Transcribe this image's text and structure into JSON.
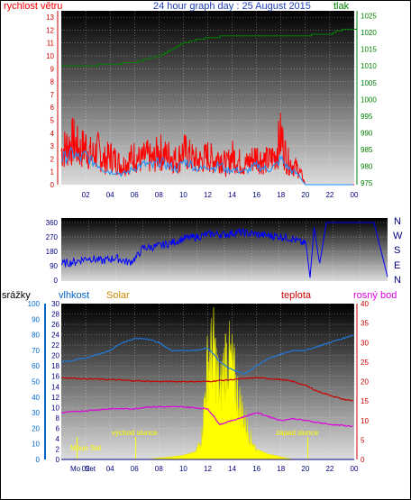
{
  "header": {
    "wind_label": "rychlost větru",
    "title": "24 hour graph day : 25 August 2015",
    "pressure_label": "tlak"
  },
  "middle": {
    "compass": [
      "N",
      "W",
      "S",
      "E",
      "N"
    ]
  },
  "bottom": {
    "rain_label": "srážky",
    "humidity_label": "vlhkost",
    "solar_label": "Solar",
    "temp_label": "teplota",
    "dew_label": "rosný bod",
    "sunrise": "východ slunce",
    "sunset": "západ slunce",
    "moonset": "Moon Set",
    "moonset_tick": "Mo",
    "moon_tick2": "Set"
  },
  "colors": {
    "wind": "#ff0000",
    "wind_avg": "#1e90ff",
    "pressure": "#008000",
    "direction": "#0000ff",
    "humidity": "#1e78dc",
    "temp": "#cc0000",
    "dew": "#dd00dd",
    "solar": "#ffff00",
    "rain_axis": "#0066cc",
    "temp_axis": "#cc0000",
    "solar_axis": "#cc8800"
  },
  "chart_data": [
    {
      "type": "line",
      "name": "wind",
      "xlabel": "",
      "x_ticks": [
        "02",
        "04",
        "06",
        "08",
        "10",
        "12",
        "14",
        "16",
        "18",
        "20",
        "22",
        "00"
      ],
      "y_left_ticks": [
        0,
        1,
        2,
        3,
        4,
        5,
        6,
        7,
        8,
        9,
        10,
        11,
        12,
        13
      ],
      "y_right_ticks": [
        975,
        980,
        985,
        990,
        995,
        1000,
        1005,
        1010,
        1015,
        1020,
        1025
      ],
      "ylim_left": [
        0,
        13.5
      ],
      "ylim_right": [
        974.5,
        1026.5
      ],
      "series": [
        {
          "name": "wind_gust",
          "axis": "left",
          "x": [
            0,
            0.5,
            1,
            1.5,
            2,
            2.5,
            3,
            3.5,
            4,
            4.5,
            5,
            5.5,
            6,
            6.5,
            7,
            7.5,
            8,
            8.5,
            9,
            9.5,
            10,
            10.5,
            11,
            11.5,
            12,
            12.5,
            13,
            13.5,
            14,
            14.5,
            15,
            15.5,
            16,
            16.5,
            17,
            17.5,
            18,
            18.5,
            19,
            19.5,
            20,
            21,
            22,
            23,
            24
          ],
          "y": [
            3.5,
            4,
            4.5,
            3.5,
            4,
            3,
            3.5,
            2.5,
            3,
            2.5,
            2,
            2.5,
            3,
            2.5,
            3,
            2.5,
            3.5,
            3,
            3,
            2.5,
            3.5,
            3,
            2.5,
            2.5,
            3,
            2.5,
            3,
            2,
            3,
            2.5,
            2,
            2.5,
            3,
            2.5,
            2.5,
            3,
            5,
            2.5,
            2,
            1.5,
            0,
            0,
            0,
            0,
            0
          ]
        },
        {
          "name": "wind_avg",
          "axis": "left",
          "x": [
            0,
            0.5,
            1,
            1.5,
            2,
            2.5,
            3,
            3.5,
            4,
            4.5,
            5,
            5.5,
            6,
            6.5,
            7,
            7.5,
            8,
            8.5,
            9,
            9.5,
            10,
            10.5,
            11,
            11.5,
            12,
            12.5,
            13,
            13.5,
            14,
            14.5,
            15,
            15.5,
            16,
            16.5,
            17,
            17.5,
            18,
            18.5,
            19,
            19.5,
            20,
            21,
            22,
            23,
            24
          ],
          "y": [
            2,
            2.2,
            2.4,
            2,
            2.3,
            1.8,
            1.6,
            1.2,
            1,
            1,
            0.8,
            1,
            1.3,
            1.5,
            1.6,
            1.4,
            1.8,
            1.6,
            1.4,
            1.2,
            1.8,
            1.7,
            1.3,
            1.2,
            1.5,
            1.3,
            1.6,
            1.1,
            1.2,
            1.1,
            1,
            1.2,
            1.5,
            1.3,
            1.2,
            1.4,
            2,
            1.4,
            1,
            0.7,
            0,
            0,
            0,
            0,
            0
          ]
        },
        {
          "name": "pressure",
          "axis": "right",
          "x": [
            0,
            2,
            4,
            6,
            8,
            10,
            12,
            14,
            16,
            18,
            20,
            22,
            23,
            24
          ],
          "y": [
            1010,
            1010,
            1010.5,
            1011,
            1013,
            1017,
            1018.5,
            1019,
            1019,
            1019,
            1019.2,
            1019.5,
            1021,
            1021
          ]
        }
      ]
    },
    {
      "type": "line",
      "name": "wind_direction",
      "y_left_ticks": [
        0,
        90,
        180,
        270,
        360
      ],
      "ylim": [
        0,
        360
      ],
      "series": [
        {
          "name": "direction",
          "x": [
            0,
            1,
            2,
            3,
            4,
            5,
            5.5,
            6,
            7,
            8,
            9,
            10,
            11,
            12,
            13,
            14,
            15,
            16,
            17,
            17.5,
            18,
            18.3,
            18.6,
            19,
            19.5,
            20,
            22,
            23,
            24
          ],
          "y": [
            100,
            115,
            140,
            120,
            140,
            110,
            140,
            200,
            210,
            230,
            260,
            270,
            290,
            285,
            300,
            290,
            280,
            275,
            260,
            240,
            225,
            15,
            330,
            100,
            360,
            360,
            360,
            360,
            20
          ]
        }
      ]
    },
    {
      "type": "area",
      "name": "climate",
      "x_ticks": [
        "02",
        "04",
        "06",
        "08",
        "10",
        "12",
        "14",
        "16",
        "18",
        "20",
        "22",
        "00"
      ],
      "y_rain_ticks": [
        0,
        10,
        20,
        30,
        40,
        50,
        60,
        70,
        80,
        90,
        100
      ],
      "y_humidity_ticks": [
        0,
        2,
        4,
        6,
        8,
        10,
        12,
        14,
        16,
        18,
        20,
        22,
        24,
        26,
        28,
        30
      ],
      "y_temp_ticks": [
        0,
        5,
        10,
        15,
        20,
        25,
        30,
        35,
        40
      ],
      "series": [
        {
          "name": "humidity",
          "axis": "temp",
          "x": [
            0,
            2,
            4,
            5,
            6,
            7,
            8,
            9,
            10,
            11,
            12,
            12.5,
            13,
            14,
            15,
            16,
            17,
            18,
            19,
            20,
            21,
            22,
            23,
            24
          ],
          "y": [
            25,
            26,
            28,
            30,
            31,
            31,
            30,
            28,
            28,
            28,
            28.5,
            27,
            25,
            23,
            22,
            24,
            26,
            27,
            28,
            28,
            29,
            30,
            31,
            32
          ]
        },
        {
          "name": "temp",
          "axis": "temp",
          "x": [
            0,
            2,
            4,
            6,
            8,
            10,
            12,
            14,
            16,
            18,
            19,
            20,
            21,
            22,
            23,
            24
          ],
          "y": [
            21,
            20.7,
            20.5,
            20.2,
            20,
            20,
            20,
            20.5,
            21,
            20.5,
            20,
            19,
            17.5,
            16.5,
            15.5,
            15
          ]
        },
        {
          "name": "dew",
          "axis": "temp",
          "x": [
            0,
            2,
            4,
            6,
            7,
            8,
            10,
            12,
            13,
            14,
            15,
            16,
            17,
            18,
            19,
            20,
            22,
            24
          ],
          "y": [
            12,
            12.5,
            13,
            13,
            13.5,
            13.5,
            13.5,
            13,
            9,
            10,
            11,
            12,
            11,
            10,
            10.5,
            10,
            9,
            8.5
          ]
        },
        {
          "name": "solar",
          "axis": "humidity",
          "x": [
            6,
            7,
            8,
            9,
            10,
            11,
            11.5,
            12,
            12.5,
            13,
            13.5,
            14,
            14.5,
            15,
            15.5,
            16,
            17,
            18,
            19
          ],
          "y": [
            0,
            0,
            0.3,
            0.5,
            0.8,
            1.5,
            5,
            22,
            25,
            15,
            24,
            21,
            14,
            9,
            5,
            2,
            1,
            0.5,
            0
          ]
        }
      ]
    }
  ]
}
